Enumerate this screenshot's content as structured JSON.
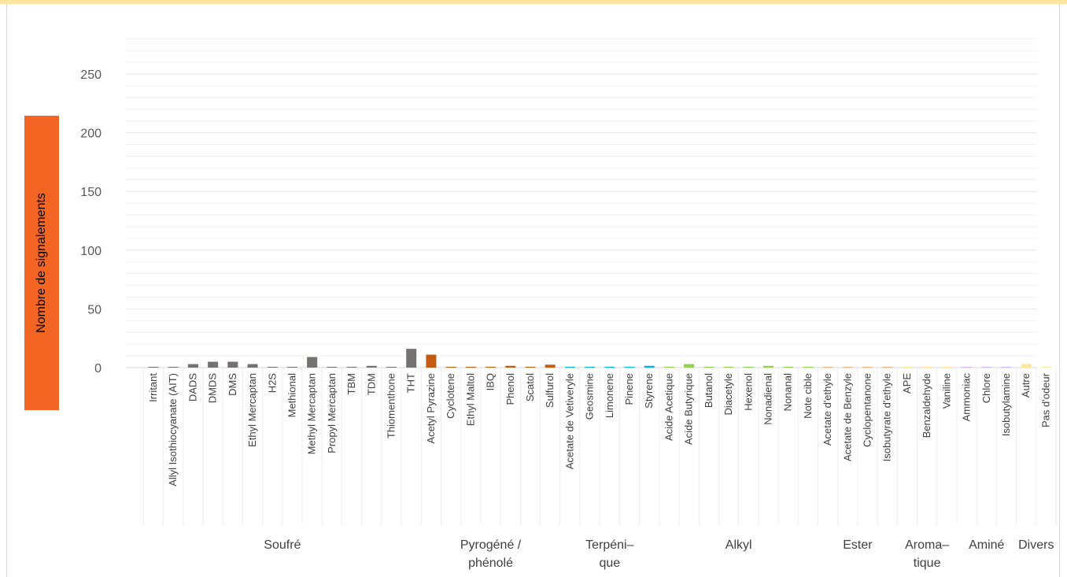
{
  "chart_data": {
    "type": "bar",
    "ylabel": "Nombre de signalements",
    "ylim": [
      0,
      280
    ],
    "yticks": [
      0,
      50,
      100,
      150,
      200,
      250
    ],
    "minor_gridline_step": 10,
    "ylabel_box_color": "#f26522",
    "top_band_color": "#fbe7a1",
    "groups": [
      {
        "name": "Soufré",
        "label_lines": [
          "Soufré"
        ],
        "color": "#767171",
        "categories": [
          "Irritant",
          "Allyl Isothiocyanate (AIT)",
          "DADS",
          "DMDS",
          "DMS",
          "Ethyl Mercaptan",
          "H2S",
          "Methional",
          "Methyl Mercaptan",
          "Propyl Mercaptan",
          "TBM",
          "TDM",
          "Thiomenthone",
          "THT"
        ],
        "values": [
          0.5,
          0.5,
          3,
          5,
          5,
          3,
          0.5,
          0.5,
          9,
          0.5,
          0.5,
          1.5,
          0.5,
          16
        ]
      },
      {
        "name": "Pyrogéné / phénolé",
        "label_lines": [
          "Pyrogéné /",
          "phénolé"
        ],
        "color": "#c55a11",
        "categories": [
          "Acetyl Pyrazine",
          "Cyclotene",
          "Ethyl Maltol",
          "IBQ",
          "Phenol",
          "Scatol",
          "Sulfurol"
        ],
        "values": [
          11,
          0.5,
          0.5,
          0.5,
          1.5,
          0.5,
          2.5
        ]
      },
      {
        "name": "Terpénique",
        "label_lines": [
          "Terpéni–",
          "que"
        ],
        "color": "#00b0f0",
        "categories": [
          "Acetate de Vetiveryle",
          "Geosmine",
          "Limonene",
          "Pinene",
          "Styrene"
        ],
        "values": [
          0.5,
          0.5,
          0.5,
          0.5,
          1.5
        ]
      },
      {
        "name": "Alkyl",
        "label_lines": [
          "Alkyl"
        ],
        "color": "#92d050",
        "categories": [
          "Acide Acetique",
          "Acide Butyrique",
          "Butanol",
          "Diacetyle",
          "Hexenol",
          "Nonadienal",
          "Nonanal",
          "Note cible"
        ],
        "values": [
          0.5,
          3,
          0.5,
          0.5,
          0.5,
          1.5,
          0.5,
          0.5
        ]
      },
      {
        "name": "Ester",
        "label_lines": [
          "Ester"
        ],
        "color": "#f4b183",
        "categories": [
          "Acetate d'ethyle",
          "Acetate de Benzyle",
          "Cyclopentanone",
          "Isobutyrate d'ethyle"
        ],
        "values": [
          0.5,
          0.5,
          0.5,
          0.5
        ]
      },
      {
        "name": "Aromatique",
        "label_lines": [
          "Aroma–",
          "tique"
        ],
        "color": "#ffe699",
        "categories": [
          "APE",
          "Benzaldehyde",
          "Vaniline"
        ],
        "values": [
          0.5,
          0.5,
          0.5
        ]
      },
      {
        "name": "Aminé",
        "label_lines": [
          "Aminé"
        ],
        "color": "#d9b3ff",
        "categories": [
          "Ammoniac",
          "Chlore",
          "Isobutylamine"
        ],
        "values": [
          0.5,
          0.5,
          0.5
        ]
      },
      {
        "name": "Divers",
        "label_lines": [
          "Divers"
        ],
        "color": "#ffe699",
        "categories": [
          "Autre",
          "Pas d'odeur"
        ],
        "values": [
          3,
          0.5
        ]
      }
    ]
  }
}
